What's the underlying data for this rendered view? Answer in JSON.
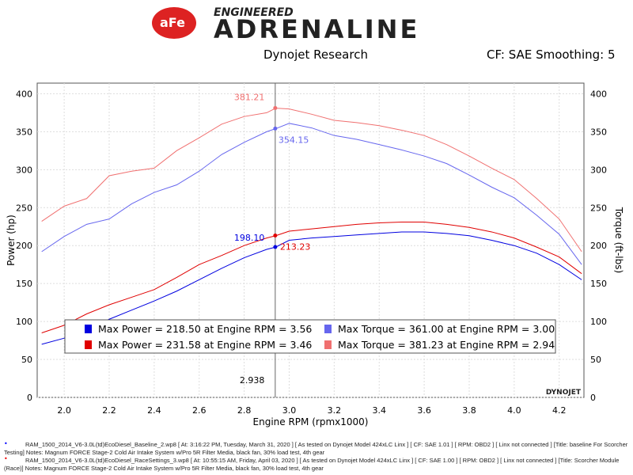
{
  "header": {
    "logo_text": "aFe POWER ENGINEERED ADRENALINE",
    "left": "Dynojet Research",
    "right": "CF: SAE Smoothing: 5"
  },
  "colors": {
    "power_baseline": "#0000e0",
    "power_race": "#e00000",
    "torque_baseline": "#6666ee",
    "torque_race": "#f07070"
  },
  "chart_data": {
    "type": "line",
    "xlabel": "Engine RPM (rpmx1000)",
    "ylabel": "Power (hp)",
    "y2label": "Torque (ft-lbs)",
    "xlim": [
      1.88,
      4.31
    ],
    "ylim": [
      0,
      414
    ],
    "xticks": [
      "2.0",
      "2.2",
      "2.4",
      "2.6",
      "2.8",
      "3.0",
      "3.2",
      "3.4",
      "3.6",
      "3.8",
      "4.0",
      "4.2"
    ],
    "yticks": [
      "0",
      "50",
      "100",
      "150",
      "200",
      "250",
      "300",
      "350",
      "400"
    ],
    "grid": true,
    "x": [
      1.9,
      2.0,
      2.1,
      2.2,
      2.3,
      2.4,
      2.5,
      2.6,
      2.7,
      2.8,
      2.9,
      2.94,
      3.0,
      3.1,
      3.2,
      3.3,
      3.4,
      3.5,
      3.6,
      3.7,
      3.8,
      3.9,
      4.0,
      4.1,
      4.2,
      4.3
    ],
    "series": [
      {
        "key": "torque_race",
        "values": [
          232,
          252,
          262,
          292,
          298,
          302,
          325,
          342,
          360,
          370,
          375,
          381,
          380,
          373,
          365,
          362,
          358,
          352,
          345,
          333,
          318,
          302,
          287,
          262,
          235,
          192
        ]
      },
      {
        "key": "torque_baseline",
        "values": [
          192,
          212,
          228,
          235,
          255,
          270,
          280,
          298,
          320,
          336,
          350,
          354,
          361,
          355,
          345,
          340,
          333,
          326,
          318,
          308,
          293,
          277,
          263,
          240,
          215,
          175
        ]
      },
      {
        "key": "power_race",
        "values": [
          85,
          95,
          110,
          122,
          132,
          142,
          158,
          175,
          187,
          200,
          210,
          213,
          219,
          222,
          225,
          228,
          230,
          231,
          231,
          228,
          224,
          218,
          210,
          198,
          185,
          163
        ]
      },
      {
        "key": "power_baseline",
        "values": [
          70,
          78,
          90,
          103,
          115,
          127,
          140,
          155,
          170,
          184,
          195,
          198,
          207,
          210,
          212,
          214,
          216,
          218,
          218,
          216,
          213,
          207,
          200,
          190,
          175,
          155
        ]
      }
    ],
    "cursor": {
      "x": 2.938,
      "label": "2.938"
    },
    "annotations": [
      {
        "text": "381.21",
        "y": 381.21,
        "key": "torque_race"
      },
      {
        "text": "354.15",
        "y": 354.15,
        "key": "torque_baseline"
      },
      {
        "text": "198.10",
        "y": 198.1,
        "key": "power_baseline"
      },
      {
        "text": "213.23",
        "y": 213.23,
        "key": "power_race"
      }
    ],
    "legend": [
      {
        "key": "power_baseline",
        "text": "Max Power = 218.50 at Engine RPM = 3.56"
      },
      {
        "key": "torque_baseline",
        "text": "Max Torque = 361.00 at Engine RPM = 3.00"
      },
      {
        "key": "power_race",
        "text": "Max Power = 231.58 at Engine RPM = 3.46"
      },
      {
        "key": "torque_race",
        "text": "Max Torque = 381.23 at Engine RPM = 2.94"
      }
    ],
    "watermark": "DYNOJET"
  },
  "footer": {
    "run1a": "RAM_1500_2014_V6-3.0L(td)EcoDiesel_Baseline_2.wp8 [ At: 3:16:22 PM, Tuesday, March 31, 2020 ] [ As tested on Dynojet Model 424xLC Linx ] [ CF: SAE 1.01 ] [ RPM: OBD2 ] [ Linx not connected ] [Title: baseline For Scorcher",
    "run1b": "Testing]  Notes: Magnum FORCE Stage-2 Cold Air Intake System w/Pro 5R Filter Media, black fan, 30% load test,  4th gear",
    "run2a": "RAM_1500_2014_V6-3.0L(td)EcoDiesel_RaceSettings_3.wp8 [ At: 10:55:15 AM, Friday, April 03, 2020 ] [ As tested on Dynojet Model 424xLC Linx ] [ CF: SAE 1.00 ] [ RPM: OBD2 ] [ Linx not connected ] [Title: Scorcher Module",
    "run2b": "(Race)]  Notes: Magnum FORCE Stage-2 Cold Air Intake System w/Pro 5R Filter Media, black fan, 30% load test,  4th gear"
  }
}
